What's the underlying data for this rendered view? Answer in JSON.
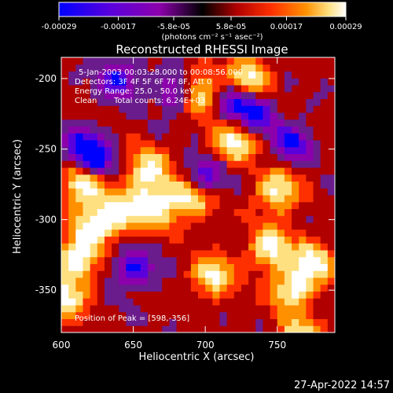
{
  "chart_data": {
    "type": "heatmap",
    "title": "Reconstructed RHESSI Image",
    "xlabel": "Heliocentric X (arcsec)",
    "ylabel": "Heliocentric Y (arcsec)",
    "xlim": [
      600,
      790
    ],
    "ylim": [
      -380,
      -185
    ],
    "x_ticks": [
      "600",
      "650",
      "700",
      "750"
    ],
    "x_tick_values": [
      600,
      650,
      700,
      750
    ],
    "y_ticks": [
      "-200",
      "-250",
      "-300",
      "-350"
    ],
    "y_tick_values": [
      -200,
      -250,
      -300,
      -350
    ],
    "colorbar": {
      "range": [
        -0.00029,
        0.00029
      ],
      "ticks": [
        "-0.00029",
        "-0.00017",
        "-5.8e-05",
        "5.8e-05",
        "0.00017",
        "0.00029"
      ],
      "tick_values": [
        -0.00029,
        -0.00017,
        -5.8e-05,
        5.8e-05,
        0.00017,
        0.00029
      ],
      "units": "(photons cm⁻² s⁻¹ asec⁻²)",
      "colors": [
        "#0000ff",
        "#5a00dc",
        "#8c00ac",
        "#000000",
        "#b00000",
        "#ff3000",
        "#ff9000",
        "#ffe080",
        "#ffffff"
      ]
    },
    "grid": false,
    "colormap_note_levels": {
      "low": [
        [
          625,
          -258
        ],
        [
          615,
          -248
        ],
        [
          760,
          -245
        ],
        [
          680,
          -210
        ],
        [
          720,
          -215
        ],
        [
          650,
          -335
        ],
        [
          640,
          -200
        ],
        [
          700,
          -270
        ],
        [
          735,
          -225
        ]
      ],
      "high": [
        [
          602,
          -356
        ],
        [
          610,
          -330
        ],
        [
          620,
          -305
        ],
        [
          665,
          -290
        ],
        [
          690,
          -285
        ],
        [
          660,
          -265
        ],
        [
          720,
          -245
        ],
        [
          745,
          -320
        ],
        [
          760,
          -350
        ],
        [
          775,
          -330
        ],
        [
          750,
          -280
        ],
        [
          705,
          -340
        ],
        [
          765,
          -385
        ],
        [
          640,
          -295
        ],
        [
          695,
          -210
        ],
        [
          730,
          -200
        ],
        [
          615,
          -275
        ]
      ]
    }
  },
  "annotations": {
    "time_range": "5-Jan-2003 00:03:28.000 to 00:08:56.000",
    "detectors": "Detectors: 3F 4F 5F 6F 7F 8F, Att 0",
    "energy": "Energy Range: 25.0 - 50.0 keV",
    "clean": "Clean",
    "total_counts": "Total counts: 6.24E+03",
    "peak": "Position of Peak = [598,-356]"
  },
  "timestamp": "27-Apr-2022 14:57"
}
